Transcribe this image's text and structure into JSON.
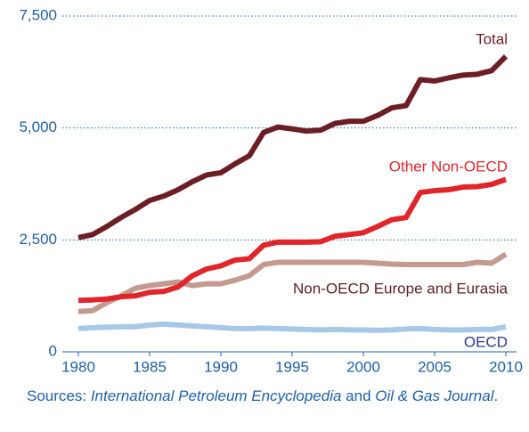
{
  "chart_data": {
    "type": "line",
    "x": [
      1980,
      1981,
      1982,
      1983,
      1984,
      1985,
      1986,
      1987,
      1988,
      1989,
      1990,
      1991,
      1992,
      1993,
      1994,
      1995,
      1996,
      1997,
      1998,
      1999,
      2000,
      2001,
      2002,
      2003,
      2004,
      2005,
      2006,
      2007,
      2008,
      2009,
      2010
    ],
    "series": [
      {
        "name": "Total",
        "color": "#6b1e24",
        "values": [
          2550,
          2620,
          2800,
          3000,
          3180,
          3380,
          3480,
          3620,
          3800,
          3950,
          4000,
          4200,
          4380,
          4900,
          5020,
          4980,
          4930,
          4950,
          5100,
          5150,
          5150,
          5280,
          5450,
          5500,
          6080,
          6050,
          6120,
          6180,
          6200,
          6280,
          6600
        ]
      },
      {
        "name": "Other Non-OECD",
        "color": "#e0262b",
        "values": [
          1150,
          1160,
          1180,
          1230,
          1250,
          1330,
          1350,
          1450,
          1700,
          1850,
          1920,
          2050,
          2080,
          2380,
          2450,
          2450,
          2450,
          2460,
          2580,
          2620,
          2660,
          2800,
          2950,
          3000,
          3560,
          3600,
          3620,
          3680,
          3690,
          3740,
          3850
        ]
      },
      {
        "name": "Non-OECD Europe and Eurasia",
        "color": "#c49a90",
        "values": [
          900,
          920,
          1100,
          1250,
          1420,
          1480,
          1520,
          1560,
          1480,
          1520,
          1520,
          1600,
          1700,
          1950,
          2000,
          2000,
          2000,
          2000,
          2000,
          2000,
          2000,
          1980,
          1960,
          1950,
          1950,
          1950,
          1950,
          1950,
          2000,
          1980,
          2180
        ]
      },
      {
        "name": "OECD",
        "color": "#a8c8e8",
        "values": [
          520,
          540,
          550,
          560,
          560,
          600,
          620,
          600,
          580,
          560,
          540,
          520,
          520,
          530,
          520,
          510,
          500,
          490,
          500,
          490,
          490,
          480,
          490,
          510,
          520,
          500,
          490,
          490,
          500,
          500,
          560
        ]
      }
    ],
    "xlim": [
      1980,
      2010
    ],
    "xticks": [
      1980,
      1985,
      1990,
      1995,
      2000,
      2005,
      2010
    ],
    "ylim": [
      0,
      7500
    ],
    "yticks": [
      0,
      {
        "value": 2500,
        "label": "2,500"
      },
      {
        "value": 5000,
        "label": "5,000"
      },
      {
        "value": 7500,
        "label": "7,500"
      }
    ],
    "grid": true,
    "source": [
      "Sources: ",
      "International Petroleum Encyclopedia",
      " and ",
      "Oil & Gas Journal",
      "."
    ]
  }
}
